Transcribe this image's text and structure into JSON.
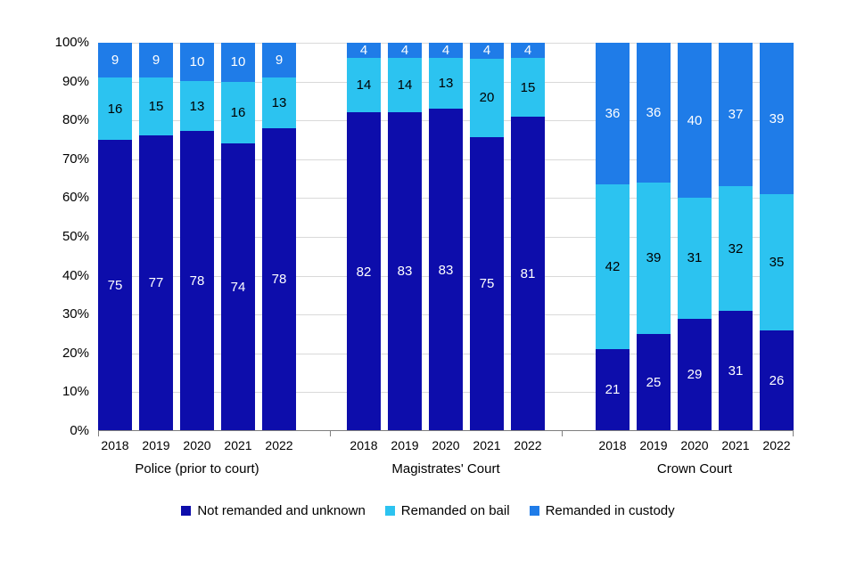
{
  "chart_data": {
    "type": "bar",
    "stacked": true,
    "percent": true,
    "title": "",
    "xlabel": "",
    "ylabel": "",
    "ylim": [
      0,
      100
    ],
    "yticks": [
      "0%",
      "10%",
      "20%",
      "30%",
      "40%",
      "50%",
      "60%",
      "70%",
      "80%",
      "90%",
      "100%"
    ],
    "grid": true,
    "legend_position": "bottom",
    "series_meta": [
      {
        "key": "not_remanded",
        "name": "Not remanded and unknown",
        "color": "#0d0dab",
        "label_color": "#ffffff"
      },
      {
        "key": "bail",
        "name": "Remanded on bail",
        "color": "#2cc3f0",
        "label_color": "#000000"
      },
      {
        "key": "custody",
        "name": "Remanded in custody",
        "color": "#1f7ce8",
        "label_color": "#ffffff"
      }
    ],
    "stack_order_bottom_to_top": [
      "not_remanded",
      "bail",
      "custody"
    ],
    "groups": [
      {
        "label": "Police (prior to court)",
        "bars": [
          {
            "year": "2018",
            "not_remanded": 75,
            "bail": 16,
            "custody": 9
          },
          {
            "year": "2019",
            "not_remanded": 77,
            "bail": 15,
            "custody": 9
          },
          {
            "year": "2020",
            "not_remanded": 78,
            "bail": 13,
            "custody": 10
          },
          {
            "year": "2021",
            "not_remanded": 74,
            "bail": 16,
            "custody": 10
          },
          {
            "year": "2022",
            "not_remanded": 78,
            "bail": 13,
            "custody": 9
          }
        ]
      },
      {
        "label": "Magistrates' Court",
        "bars": [
          {
            "year": "2018",
            "not_remanded": 82,
            "bail": 14,
            "custody": 4
          },
          {
            "year": "2019",
            "not_remanded": 83,
            "bail": 14,
            "custody": 4
          },
          {
            "year": "2020",
            "not_remanded": 83,
            "bail": 13,
            "custody": 4
          },
          {
            "year": "2021",
            "not_remanded": 75,
            "bail": 20,
            "custody": 4
          },
          {
            "year": "2022",
            "not_remanded": 81,
            "bail": 15,
            "custody": 4
          }
        ]
      },
      {
        "label": "Crown Court",
        "bars": [
          {
            "year": "2018",
            "not_remanded": 21,
            "bail": 42,
            "custody": 36
          },
          {
            "year": "2019",
            "not_remanded": 25,
            "bail": 39,
            "custody": 36
          },
          {
            "year": "2020",
            "not_remanded": 29,
            "bail": 31,
            "custody": 40
          },
          {
            "year": "2021",
            "not_remanded": 31,
            "bail": 32,
            "custody": 37
          },
          {
            "year": "2022",
            "not_remanded": 26,
            "bail": 35,
            "custody": 39
          }
        ]
      }
    ],
    "legend": [
      "Not remanded and unknown",
      "Remanded on bail",
      "Remanded in custody"
    ]
  }
}
